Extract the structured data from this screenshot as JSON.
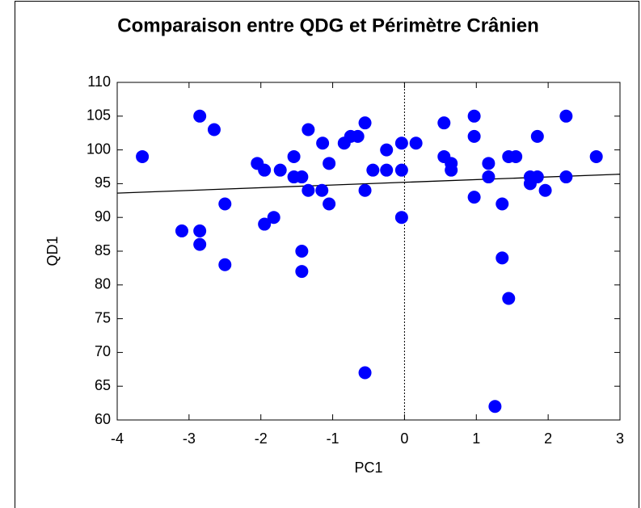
{
  "chart_data": {
    "type": "scatter",
    "title": "Comparaison entre QDG et Périmètre Crânien",
    "x_label": "PC1",
    "y_label": "QD1",
    "color": "#0000ff",
    "xlim": [
      -4,
      3
    ],
    "ylim": [
      60,
      110
    ],
    "xticks": [
      -4,
      -3,
      -2,
      -1,
      0,
      1,
      2,
      3
    ],
    "yticks": [
      60,
      65,
      70,
      75,
      80,
      85,
      90,
      95,
      100,
      105,
      110
    ],
    "reference_x": 0,
    "trendline": {
      "x": [
        -4,
        3
      ],
      "y": [
        93.6,
        96.4
      ]
    },
    "series": [
      {
        "name": "QD1",
        "color": "#0000ff",
        "x": [
          -3.65,
          -3.1,
          -2.85,
          -2.85,
          -2.85,
          -2.5,
          -2.5,
          -2.65,
          -2.05,
          -1.95,
          -1.95,
          -1.82,
          -1.73,
          -1.54,
          -1.54,
          -1.43,
          -1.43,
          -1.43,
          -1.34,
          -1.34,
          -1.15,
          -1.14,
          -1.05,
          -1.05,
          -0.84,
          -0.75,
          -0.65,
          -0.55,
          -0.55,
          -0.55,
          -0.44,
          -0.25,
          -0.25,
          -0.04,
          -0.04,
          -0.04,
          0.16,
          0.55,
          0.55,
          0.65,
          0.65,
          0.97,
          0.97,
          0.97,
          1.17,
          1.17,
          1.36,
          1.36,
          1.26,
          1.45,
          1.45,
          1.55,
          1.75,
          1.75,
          1.85,
          1.85,
          1.96,
          2.25,
          2.25,
          2.67
        ],
        "values": [
          99,
          88,
          105,
          88,
          86,
          83,
          92,
          103,
          98,
          97,
          89,
          90,
          97,
          99,
          96,
          96,
          85,
          82,
          103,
          94,
          94,
          101,
          98,
          92,
          101,
          102,
          102,
          104,
          94,
          67,
          97,
          97,
          100,
          101,
          97,
          90,
          101,
          104,
          99,
          98,
          97,
          105,
          102,
          93,
          98,
          96,
          92,
          84,
          62,
          99,
          78,
          99,
          96,
          95,
          96,
          102,
          94,
          105,
          96,
          99
        ]
      }
    ]
  }
}
